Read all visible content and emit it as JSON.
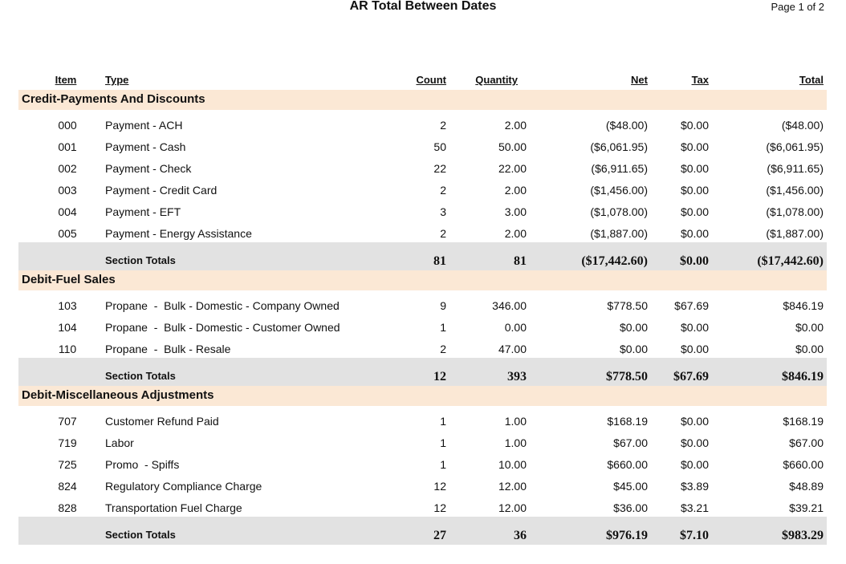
{
  "header": {
    "title": "AR Total Between Dates",
    "page": "Page 1 of 2"
  },
  "columns": [
    "Item",
    "Type",
    "Count",
    "Quantity",
    "Net",
    "Tax",
    "Total"
  ],
  "sections": [
    {
      "name": "Credit-Payments And Discounts",
      "rows": [
        [
          "000",
          "Payment - ACH",
          "2",
          "2.00",
          "($48.00)",
          "$0.00",
          "($48.00)"
        ],
        [
          "001",
          "Payment - Cash",
          "50",
          "50.00",
          "($6,061.95)",
          "$0.00",
          "($6,061.95)"
        ],
        [
          "002",
          "Payment - Check",
          "22",
          "22.00",
          "($6,911.65)",
          "$0.00",
          "($6,911.65)"
        ],
        [
          "003",
          "Payment - Credit Card",
          "2",
          "2.00",
          "($1,456.00)",
          "$0.00",
          "($1,456.00)"
        ],
        [
          "004",
          "Payment - EFT",
          "3",
          "3.00",
          "($1,078.00)",
          "$0.00",
          "($1,078.00)"
        ],
        [
          "005",
          "Payment - Energy Assistance",
          "2",
          "2.00",
          "($1,887.00)",
          "$0.00",
          "($1,887.00)"
        ]
      ],
      "totals_label": "Section Totals",
      "totals": [
        "81",
        "81",
        "($17,442.60)",
        "$0.00",
        "($17,442.60)"
      ]
    },
    {
      "name": "Debit-Fuel Sales",
      "rows": [
        [
          "103",
          "Propane  -  Bulk - Domestic - Company Owned",
          "9",
          "346.00",
          "$778.50",
          "$67.69",
          "$846.19"
        ],
        [
          "104",
          "Propane  -  Bulk - Domestic - Customer Owned",
          "1",
          "0.00",
          "$0.00",
          "$0.00",
          "$0.00"
        ],
        [
          "110",
          "Propane  -  Bulk - Resale",
          "2",
          "47.00",
          "$0.00",
          "$0.00",
          "$0.00"
        ]
      ],
      "totals_label": "Section Totals",
      "totals": [
        "12",
        "393",
        "$778.50",
        "$67.69",
        "$846.19"
      ]
    },
    {
      "name": "Debit-Miscellaneous Adjustments",
      "rows": [
        [
          "707",
          "Customer Refund Paid",
          "1",
          "1.00",
          "$168.19",
          "$0.00",
          "$168.19"
        ],
        [
          "719",
          "Labor",
          "1",
          "1.00",
          "$67.00",
          "$0.00",
          "$67.00"
        ],
        [
          "725",
          "Promo  - Spiffs",
          "1",
          "10.00",
          "$660.00",
          "$0.00",
          "$660.00"
        ],
        [
          "824",
          "Regulatory Compliance Charge",
          "12",
          "12.00",
          "$45.00",
          "$3.89",
          "$48.89"
        ],
        [
          "828",
          "Transportation Fuel Charge",
          "12",
          "12.00",
          "$36.00",
          "$3.21",
          "$39.21"
        ]
      ],
      "totals_label": "Section Totals",
      "totals": [
        "27",
        "36",
        "$976.19",
        "$7.10",
        "$983.29"
      ]
    }
  ]
}
